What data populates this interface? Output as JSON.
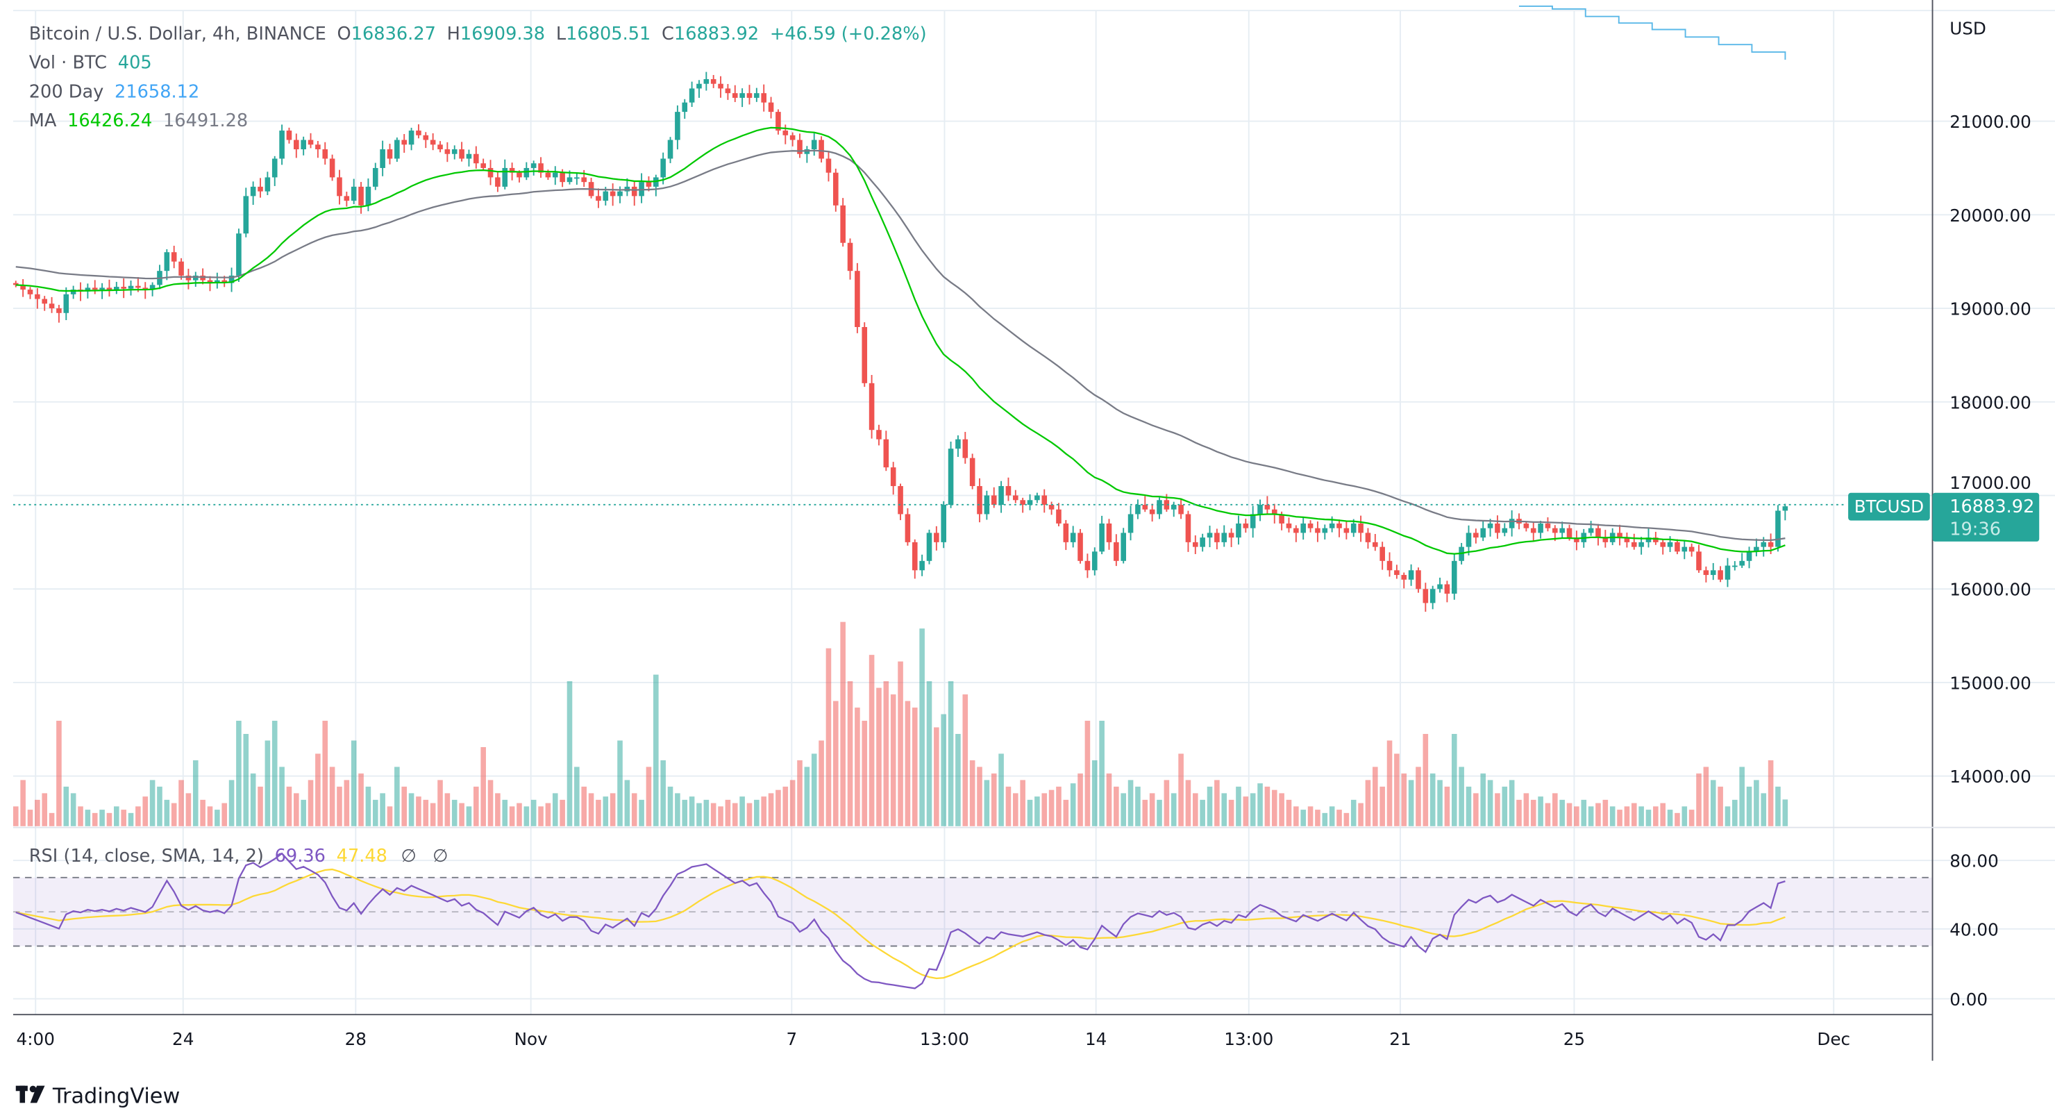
{
  "legend": {
    "symbol": "Bitcoin / U.S. Dollar, 4h, BINANCE",
    "o_label": "O",
    "o": "16836.27",
    "h_label": "H",
    "h": "16909.38",
    "l_label": "L",
    "l": "16805.51",
    "c_label": "C",
    "c": "16883.92",
    "change": "+46.59 (+0.28%)",
    "vol_label": "Vol · BTC",
    "vol": "405",
    "day200_label": "200 Day",
    "day200": "21658.12",
    "ma_label": "MA",
    "ma_fast": "16426.24",
    "ma_slow": "16491.28",
    "rsi_label": "RSI (14, close, SMA, 14, 2)",
    "rsi": "69.36",
    "rsi_ma": "47.48",
    "rsi_na1": "∅",
    "rsi_na2": "∅"
  },
  "price_axis": {
    "currency": "USD",
    "ticks": [
      "21000.00",
      "20000.00",
      "19000.00",
      "18000.00",
      "17000.00",
      "16000.00",
      "15000.00",
      "14000.00"
    ],
    "last_price": "16883.92",
    "countdown": "19:36",
    "symbol_tag": "BTCUSD"
  },
  "rsi_axis": {
    "ticks": [
      "80.00",
      "40.00",
      "0.00"
    ]
  },
  "time_axis": {
    "ticks": [
      "4:00",
      "24",
      "28",
      "Nov",
      "7",
      "13:00",
      "14",
      "13:00",
      "21",
      "25",
      "Dec"
    ]
  },
  "branding": {
    "logo": "TradingView"
  },
  "colors": {
    "up": "#26a69a",
    "down": "#ef5350",
    "ma_fast": "#00c800",
    "ma_slow": "#787b86",
    "day200": "#5ab8e8",
    "rsi": "#7e57c2",
    "rsi_ma": "#fdd835"
  },
  "chart_data": {
    "type": "candlestick",
    "interval": "4h",
    "price_range": [
      13700,
      22300
    ],
    "rsi_range": [
      0,
      100
    ],
    "rsi_bands": [
      30,
      50,
      70
    ],
    "closes": [
      19250,
      19200,
      19150,
      19100,
      19050,
      19000,
      18950,
      19150,
      19200,
      19180,
      19220,
      19200,
      19220,
      19200,
      19230,
      19210,
      19240,
      19220,
      19200,
      19250,
      19400,
      19600,
      19500,
      19350,
      19300,
      19350,
      19300,
      19280,
      19300,
      19270,
      19350,
      19800,
      20200,
      20300,
      20250,
      20400,
      20600,
      20900,
      20800,
      20700,
      20800,
      20750,
      20700,
      20600,
      20400,
      20200,
      20150,
      20300,
      20100,
      20300,
      20500,
      20700,
      20600,
      20800,
      20750,
      20900,
      20850,
      20800,
      20750,
      20700,
      20650,
      20700,
      20600,
      20650,
      20550,
      20500,
      20400,
      20300,
      20500,
      20450,
      20400,
      20500,
      20550,
      20450,
      20400,
      20450,
      20350,
      20400,
      20400,
      20350,
      20200,
      20150,
      20250,
      20200,
      20250,
      20300,
      20200,
      20350,
      20300,
      20400,
      20600,
      20800,
      21100,
      21200,
      21350,
      21400,
      21450,
      21400,
      21350,
      21300,
      21250,
      21300,
      21250,
      21300,
      21200,
      21100,
      20900,
      20850,
      20800,
      20650,
      20700,
      20800,
      20600,
      20450,
      20100,
      19700,
      19400,
      18800,
      18200,
      17700,
      17600,
      17300,
      17100,
      16800,
      16500,
      16200,
      16300,
      16600,
      16500,
      16900,
      17500,
      17600,
      17400,
      17100,
      16800,
      17000,
      16900,
      17100,
      17000,
      16950,
      16900,
      16950,
      17000,
      16900,
      16850,
      16700,
      16500,
      16600,
      16300,
      16200,
      16400,
      16700,
      16500,
      16300,
      16600,
      16800,
      16900,
      16850,
      16800,
      16950,
      16850,
      16900,
      16800,
      16500,
      16450,
      16550,
      16600,
      16500,
      16600,
      16550,
      16700,
      16650,
      16800,
      16900,
      16850,
      16800,
      16700,
      16650,
      16600,
      16700,
      16650,
      16600,
      16650,
      16700,
      16650,
      16600,
      16700,
      16600,
      16500,
      16450,
      16300,
      16200,
      16150,
      16100,
      16200,
      16000,
      15850,
      16000,
      16050,
      15950,
      16300,
      16450,
      16600,
      16550,
      16650,
      16700,
      16600,
      16650,
      16750,
      16700,
      16650,
      16600,
      16700,
      16650,
      16600,
      16650,
      16550,
      16500,
      16600,
      16650,
      16550,
      16500,
      16600,
      16550,
      16500,
      16450,
      16500,
      16550,
      16500,
      16450,
      16500,
      16400,
      16450,
      16400,
      16200,
      16150,
      16200,
      16100,
      16250,
      16250,
      16300,
      16400,
      16450,
      16500,
      16450,
      16837,
      16883.92
    ],
    "volumes": [
      300,
      700,
      250,
      400,
      500,
      200,
      1600,
      600,
      500,
      300,
      250,
      200,
      250,
      200,
      300,
      250,
      200,
      300,
      450,
      700,
      600,
      400,
      350,
      700,
      500,
      1000,
      400,
      300,
      250,
      350,
      700,
      1600,
      1400,
      800,
      600,
      1300,
      1600,
      900,
      600,
      500,
      400,
      700,
      1100,
      1600,
      900,
      600,
      700,
      1300,
      800,
      600,
      400,
      500,
      300,
      900,
      600,
      500,
      450,
      400,
      350,
      700,
      500,
      400,
      350,
      300,
      600,
      1200,
      700,
      500,
      400,
      300,
      350,
      300,
      400,
      300,
      350,
      500,
      400,
      2200,
      900,
      600,
      500,
      400,
      450,
      500,
      1300,
      700,
      500,
      400,
      900,
      2300,
      1000,
      600,
      500,
      400,
      450,
      350,
      400,
      350,
      300,
      400,
      350,
      450,
      350,
      400,
      450,
      500,
      550,
      600,
      700,
      1000,
      900,
      1100,
      1300,
      2700,
      1900,
      3100,
      2200,
      1800,
      1600,
      2600,
      2100,
      2200,
      2000,
      2500,
      1900,
      1800,
      3000,
      2200,
      1500,
      1700,
      2200,
      1400,
      2000,
      1000,
      900,
      700,
      800,
      1100,
      600,
      500,
      700,
      400,
      450,
      500,
      550,
      600,
      400,
      650,
      800,
      1600,
      1000,
      1600,
      800,
      600,
      500,
      700,
      600,
      400,
      500,
      400,
      700,
      500,
      1100,
      700,
      500,
      400,
      600,
      700,
      500,
      400,
      600,
      450,
      500,
      650,
      600,
      550,
      500,
      400,
      300,
      250,
      300,
      250,
      200,
      300,
      250,
      200,
      400,
      350,
      700,
      900,
      600,
      1300,
      1100,
      800,
      700,
      900,
      1400,
      800,
      700,
      600,
      1400,
      900,
      600,
      500,
      800,
      700,
      500,
      600,
      700,
      400,
      500,
      400,
      450,
      350,
      500,
      400,
      350,
      300,
      400,
      300,
      350,
      400,
      300,
      250,
      300,
      350,
      300,
      250,
      300,
      350,
      250,
      200,
      300,
      250,
      800,
      900,
      700,
      600,
      300,
      400,
      900,
      600,
      700,
      500,
      1000,
      600,
      405
    ],
    "day200_line": {
      "from_candle": 209,
      "values": [
        22230,
        22200,
        22120,
        22050,
        21980,
        21900,
        21820,
        21740,
        21658.12
      ]
    }
  }
}
